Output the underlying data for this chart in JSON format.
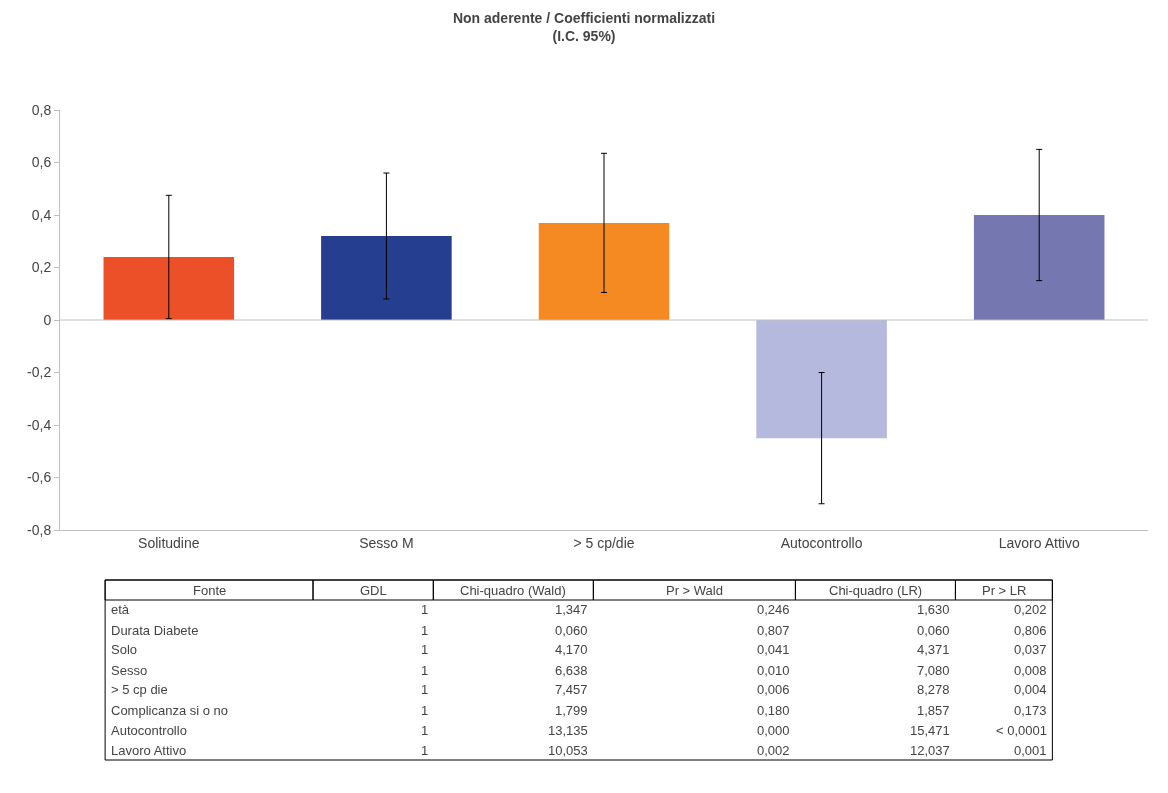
{
  "chart_data": [
    {
      "type": "bar",
      "title": "Non aderente / Coefficienti normalizzati\n(I.C. 95%)",
      "categories": [
        "Solitudine",
        "Sesso M",
        "> 5 cp/die",
        "Autocontrollo",
        "Lavoro Attivo"
      ],
      "values": [
        0.24,
        0.32,
        0.37,
        -0.45,
        0.4
      ],
      "colors": [
        "#ec5029",
        "#253e8f",
        "#f48a21",
        "#b6b9de",
        "#7577b1"
      ],
      "errors": [
        0.235,
        0.24,
        0.265,
        0.25,
        0.25
      ],
      "ylim": [
        -0.8,
        0.8
      ],
      "yticks": [
        {
          "value": -0.8,
          "label": "-0,8"
        },
        {
          "value": -0.6,
          "label": "-0,6"
        },
        {
          "value": -0.4,
          "label": "-0,4"
        },
        {
          "value": -0.2,
          "label": "-0,2"
        },
        {
          "value": 0,
          "label": "0"
        },
        {
          "value": 0.2,
          "label": "0,2"
        },
        {
          "value": 0.4,
          "label": "0,4"
        },
        {
          "value": 0.6,
          "label": "0,6"
        },
        {
          "value": 0.8,
          "label": "0,8"
        }
      ],
      "ref_lines": [
        {
          "axis": "y",
          "value": 0,
          "color": "#bfbfbf"
        }
      ]
    },
    {
      "type": "other",
      "annotations": [
        "Fonte",
        "GDL",
        "Chi-quadro (Wald)",
        "Pr > Wald",
        "Chi-quadro (LR)",
        "Pr > LR",
        "età",
        "1",
        "1,347",
        "0,246",
        "1,630",
        "0,202",
        "Durata Diabete",
        "1",
        "0,060",
        "0,807",
        "0,060",
        "0,806",
        "Solo",
        "1",
        "4,170",
        "0,041",
        "4,371",
        "0,037",
        "Sesso",
        "1",
        "6,638",
        "0,010",
        "7,080",
        "0,008",
        "> 5 cp die",
        "1",
        "7,457",
        "0,006",
        "8,278",
        "0,004",
        "Complicanza si o no",
        "1",
        "1,799",
        "0,180",
        "1,857",
        "0,173",
        "Autocontrollo",
        "1",
        "13,135",
        "0,000",
        "15,471",
        "< 0,0001",
        "Lavoro Attivo",
        "1",
        "10,053",
        "0,002",
        "12,037",
        "0,001"
      ]
    }
  ]
}
